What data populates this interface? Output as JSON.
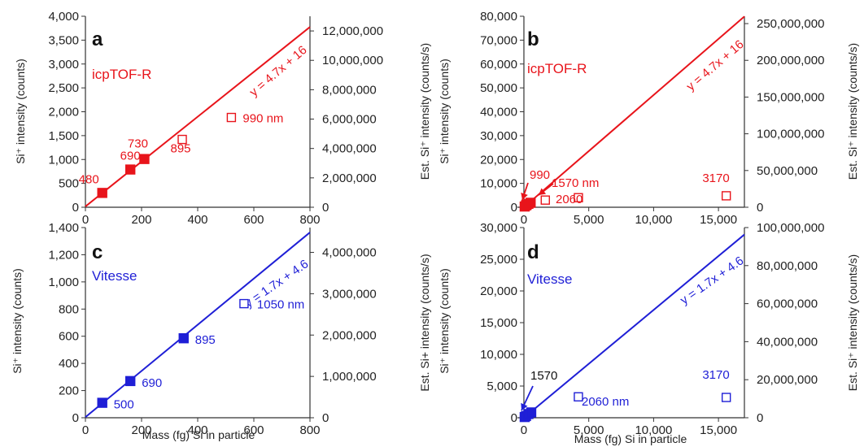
{
  "chart_data": [
    {
      "type": "scatter",
      "panel_letter": "a",
      "instrument_label": "icpTOF-R",
      "equation": "y = 4.7x + 16",
      "color": "#e8141b",
      "xlim": [
        0,
        800
      ],
      "ylim": [
        0,
        4000
      ],
      "y2lim": [
        0,
        13000000
      ],
      "xticks": [
        0,
        200,
        400,
        600,
        800
      ],
      "xtick_labels": [
        "0",
        "200",
        "400",
        "600",
        "800"
      ],
      "yticks": [
        0,
        500,
        1000,
        1500,
        2000,
        2500,
        3000,
        3500,
        4000
      ],
      "ytick_labels": [
        "0",
        "500",
        "1,000",
        "1,500",
        "2,000",
        "2,500",
        "3,000",
        "3,500",
        "4,000"
      ],
      "y2ticks": [
        0,
        2000000,
        4000000,
        6000000,
        8000000,
        10000000,
        12000000
      ],
      "y2tick_labels": [
        "0",
        "2,000,000",
        "4,000,000",
        "6,000,000",
        "8,000,000",
        "10,000,000",
        "12,000,000"
      ],
      "ylabel": "Si⁺ intensity (counts)",
      "y2label": "Est. Si⁺ intensity (counts/s)",
      "xlabel": "",
      "fit": {
        "slope": 4.7,
        "intercept": 16
      },
      "series": [
        {
          "marker": "filled-square",
          "points": [
            {
              "x": 60,
              "y": 300,
              "label": "480"
            },
            {
              "x": 160,
              "y": 790,
              "label": "690"
            },
            {
              "x": 210,
              "y": 1010,
              "label": "730"
            }
          ]
        },
        {
          "marker": "open-square",
          "points": [
            {
              "x": 345,
              "y": 1420,
              "label": "895"
            },
            {
              "x": 520,
              "y": 1880,
              "label": "990 nm"
            }
          ]
        }
      ]
    },
    {
      "type": "scatter",
      "panel_letter": "b",
      "instrument_label": "icpTOF-R",
      "equation": "y = 4.7x + 16",
      "color": "#e8141b",
      "xlim": [
        -500,
        17000
      ],
      "ylim": [
        0,
        80000
      ],
      "y2lim": [
        0,
        260000000
      ],
      "xticks": [
        0,
        5000,
        10000,
        15000
      ],
      "xtick_labels": [
        "0",
        "5,000",
        "10,000",
        "15,000"
      ],
      "yticks": [
        0,
        10000,
        20000,
        30000,
        40000,
        50000,
        60000,
        70000,
        80000
      ],
      "ytick_labels": [
        "0",
        "10,000",
        "20,000",
        "30,000",
        "40,000",
        "50,000",
        "60,000",
        "70,000",
        "80,000"
      ],
      "y2ticks": [
        0,
        50000000,
        100000000,
        150000000,
        200000000,
        250000000
      ],
      "y2tick_labels": [
        "0",
        "50,000,000",
        "100,000,000",
        "150,000,000",
        "200,000,000",
        "250,000,000"
      ],
      "ylabel": "Si⁺ intensity (counts)",
      "y2label": "Est. Si⁺ intensity (counts/s)",
      "xlabel": "",
      "fit": {
        "slope": 4.7,
        "intercept": 16
      },
      "series": [
        {
          "marker": "filled-square",
          "points": [
            {
              "x": 60,
              "y": 300
            },
            {
              "x": 160,
              "y": 790
            },
            {
              "x": 210,
              "y": 1010
            },
            {
              "x": 345,
              "y": 1420
            },
            {
              "x": 520,
              "y": 1880
            }
          ]
        },
        {
          "marker": "open-square",
          "points": [
            {
              "x": 1650,
              "y": 3000
            },
            {
              "x": 4200,
              "y": 4000
            },
            {
              "x": 15600,
              "y": 4800
            }
          ]
        }
      ],
      "annotations": [
        "990",
        "1570 nm",
        "2060",
        "3170"
      ]
    },
    {
      "type": "scatter",
      "panel_letter": "c",
      "instrument_label": "Vitesse",
      "equation": "y = 1.7x + 4.6",
      "color": "#1f1fd6",
      "xlim": [
        0,
        800
      ],
      "ylim": [
        0,
        1400
      ],
      "y2lim": [
        0,
        4600000
      ],
      "xticks": [
        0,
        200,
        400,
        600,
        800
      ],
      "xtick_labels": [
        "0",
        "200",
        "400",
        "600",
        "800"
      ],
      "yticks": [
        0,
        200,
        400,
        600,
        800,
        1000,
        1200,
        1400
      ],
      "ytick_labels": [
        "0",
        "200",
        "400",
        "600",
        "800",
        "1,000",
        "1,200",
        "1,400"
      ],
      "y2ticks": [
        0,
        1000000,
        2000000,
        3000000,
        4000000
      ],
      "y2tick_labels": [
        "0",
        "1,000,000",
        "2,000,000",
        "3,000,000",
        "4,000,000"
      ],
      "ylabel": "Si⁺ intensity (counts)",
      "y2label": "Est. Si+ intensity (counts/s)",
      "xlabel": "Mass (fg) Si in particle",
      "fit": {
        "slope": 1.7,
        "intercept": 4.6
      },
      "series": [
        {
          "marker": "filled-square",
          "points": [
            {
              "x": 60,
              "y": 110,
              "label": "500"
            },
            {
              "x": 160,
              "y": 270,
              "label": "690"
            },
            {
              "x": 350,
              "y": 585,
              "label": "895"
            }
          ]
        },
        {
          "marker": "open-square",
          "points": [
            {
              "x": 565,
              "y": 840,
              "label": "1050 nm"
            }
          ]
        }
      ]
    },
    {
      "type": "scatter",
      "panel_letter": "d",
      "instrument_label": "Vitesse",
      "equation": "y = 1.7x + 4.6",
      "color": "#1f1fd6",
      "xlim": [
        -500,
        17000
      ],
      "ylim": [
        0,
        30000
      ],
      "y2lim": [
        0,
        100000000
      ],
      "xticks": [
        0,
        5000,
        10000,
        15000
      ],
      "xtick_labels": [
        "0",
        "5,000",
        "10,000",
        "15,000"
      ],
      "yticks": [
        0,
        5000,
        10000,
        15000,
        20000,
        25000,
        30000
      ],
      "ytick_labels": [
        "0",
        "5,000",
        "10,000",
        "15,000",
        "20,000",
        "25,000",
        "30,000"
      ],
      "y2ticks": [
        0,
        20000000,
        40000000,
        60000000,
        80000000,
        100000000
      ],
      "y2tick_labels": [
        "0",
        "20,000,000",
        "40,000,000",
        "60,000,000",
        "80,000,000",
        "100,000,000"
      ],
      "ylabel": "Si⁺ intensity (counts)",
      "y2label": "Est. Si⁺ intensity (counts/s)",
      "xlabel": "Mass (fg) Si in particle",
      "fit": {
        "slope": 1.7,
        "intercept": 4.6
      },
      "series": [
        {
          "marker": "filled-square",
          "points": [
            {
              "x": 60,
              "y": 110
            },
            {
              "x": 160,
              "y": 270
            },
            {
              "x": 350,
              "y": 585
            },
            {
              "x": 565,
              "y": 840
            }
          ]
        },
        {
          "marker": "open-square",
          "points": [
            {
              "x": 4200,
              "y": 3300
            },
            {
              "x": 15600,
              "y": 3200
            }
          ]
        }
      ],
      "annotations": [
        "1570",
        "2060 nm",
        "3170"
      ]
    }
  ]
}
